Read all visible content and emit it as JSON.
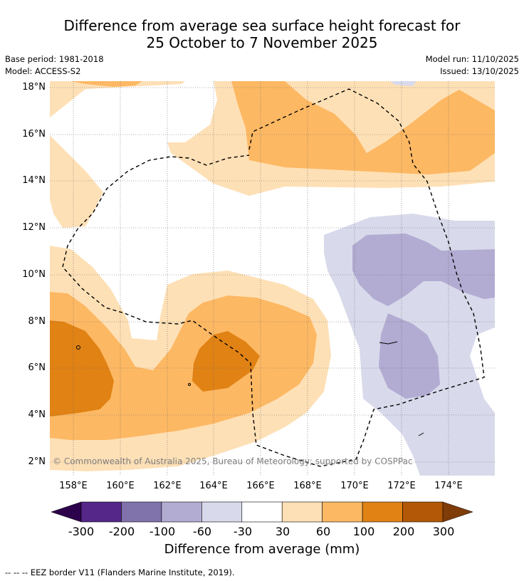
{
  "title_line1": "Difference from average sea surface height forecast for",
  "title_line2": "25 October to 7 November 2025",
  "base_period": "Base period: 1981-2018",
  "model": "Model: ACCESS-S2",
  "model_run": "Model run: 11/10/2025",
  "issued": "Issued: 13/10/2025",
  "lat_labels": [
    "18°N",
    "16°N",
    "14°N",
    "12°N",
    "10°N",
    "8°N",
    "6°N",
    "4°N",
    "2°N"
  ],
  "lon_labels": [
    "158°E",
    "160°E",
    "162°E",
    "164°E",
    "166°E",
    "168°E",
    "170°E",
    "172°E",
    "174°E"
  ],
  "copyright": "© Commonwealth of Australia 2025, Bureau of Meteorology; supported by COSPPac",
  "colorbar": {
    "ticks": [
      "-300",
      "-200",
      "-100",
      "-60",
      "-30",
      "30",
      "60",
      "100",
      "200",
      "300"
    ],
    "colors": [
      "#2d004b",
      "#542788",
      "#8073ac",
      "#b2abd2",
      "#d8daeb",
      "#ffffff",
      "#fee0b6",
      "#fdb863",
      "#e08214",
      "#b35806",
      "#7f3b08"
    ],
    "label": "Difference from average (mm)"
  },
  "legend_note": "-- -- -- EEZ border V11 (Flanders Marine Institute, 2019)."
}
